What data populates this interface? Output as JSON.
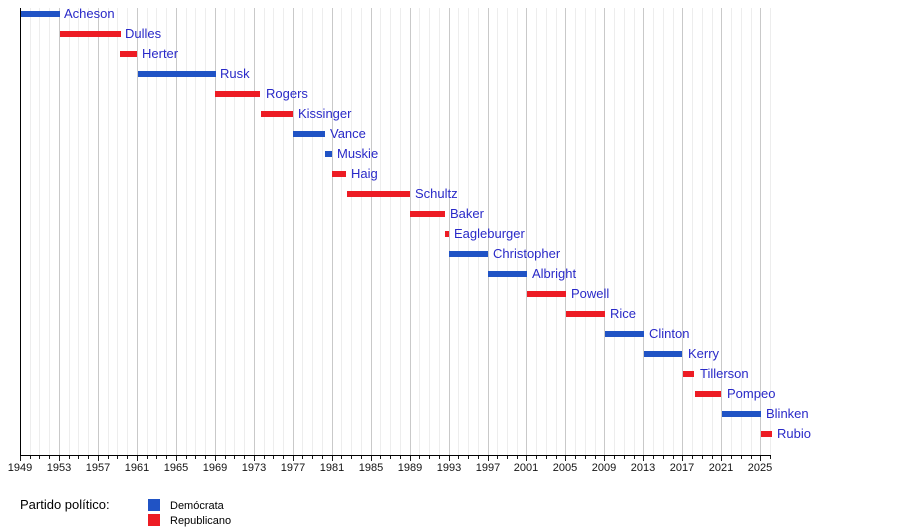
{
  "chart_data": {
    "type": "bar",
    "variant": "gantt-timeline",
    "title": "",
    "xlabel": "",
    "ylabel": "",
    "grid": true,
    "legend_position": "bottom-left",
    "x_axis": {
      "min": 1949,
      "max": 2026,
      "major_tick_interval": 4,
      "minor_tick_interval": 1,
      "tick_labels": [
        "1949",
        "1953",
        "1957",
        "1961",
        "1965",
        "1969",
        "1973",
        "1977",
        "1981",
        "1985",
        "1989",
        "1993",
        "1997",
        "2001",
        "2005",
        "2009",
        "2013",
        "2017",
        "2021",
        "2025"
      ]
    },
    "party_colors": {
      "Demócrata": "#2053c5",
      "Republicano": "#ed1c24"
    },
    "label_color": "#2929c8",
    "bars": [
      {
        "name": "Acheson",
        "party": "Demócrata",
        "start": 1949.07,
        "end": 1953.05
      },
      {
        "name": "Dulles",
        "party": "Republicano",
        "start": 1953.07,
        "end": 1959.3
      },
      {
        "name": "Herter",
        "party": "Republicano",
        "start": 1959.3,
        "end": 1961.05
      },
      {
        "name": "Rusk",
        "party": "Demócrata",
        "start": 1961.07,
        "end": 1969.05
      },
      {
        "name": "Rogers",
        "party": "Republicano",
        "start": 1969.07,
        "end": 1973.7
      },
      {
        "name": "Kissinger",
        "party": "Republicano",
        "start": 1973.73,
        "end": 1977.05
      },
      {
        "name": "Vance",
        "party": "Demócrata",
        "start": 1977.07,
        "end": 1980.33
      },
      {
        "name": "Muskie",
        "party": "Demócrata",
        "start": 1980.35,
        "end": 1981.05
      },
      {
        "name": "Haig",
        "party": "Republicano",
        "start": 1981.07,
        "end": 1982.52
      },
      {
        "name": "Schultz",
        "party": "Republicano",
        "start": 1982.54,
        "end": 1989.05
      },
      {
        "name": "Baker",
        "party": "Republicano",
        "start": 1989.07,
        "end": 1992.63
      },
      {
        "name": "Eagleburger",
        "party": "Republicano",
        "start": 1992.63,
        "end": 1993.05
      },
      {
        "name": "Christopher",
        "party": "Demócrata",
        "start": 1993.07,
        "end": 1997.05
      },
      {
        "name": "Albright",
        "party": "Demócrata",
        "start": 1997.07,
        "end": 2001.05
      },
      {
        "name": "Powell",
        "party": "Republicano",
        "start": 2001.07,
        "end": 2005.05
      },
      {
        "name": "Rice",
        "party": "Republicano",
        "start": 2005.07,
        "end": 2009.05
      },
      {
        "name": "Clinton",
        "party": "Demócrata",
        "start": 2009.07,
        "end": 2013.1
      },
      {
        "name": "Kerry",
        "party": "Demócrata",
        "start": 2013.1,
        "end": 2017.05
      },
      {
        "name": "Tillerson",
        "party": "Republicano",
        "start": 2017.07,
        "end": 2018.25
      },
      {
        "name": "Pompeo",
        "party": "Republicano",
        "start": 2018.33,
        "end": 2021.05
      },
      {
        "name": "Blinken",
        "party": "Demócrata",
        "start": 2021.07,
        "end": 2025.05
      },
      {
        "name": "Rubio",
        "party": "Republicano",
        "start": 2025.07,
        "end": 2026.2
      }
    ]
  },
  "legend": {
    "title": "Partido político:",
    "items": [
      {
        "label": "Demócrata",
        "color": "#2053c5"
      },
      {
        "label": "Republicano",
        "color": "#ed1c24"
      }
    ]
  }
}
